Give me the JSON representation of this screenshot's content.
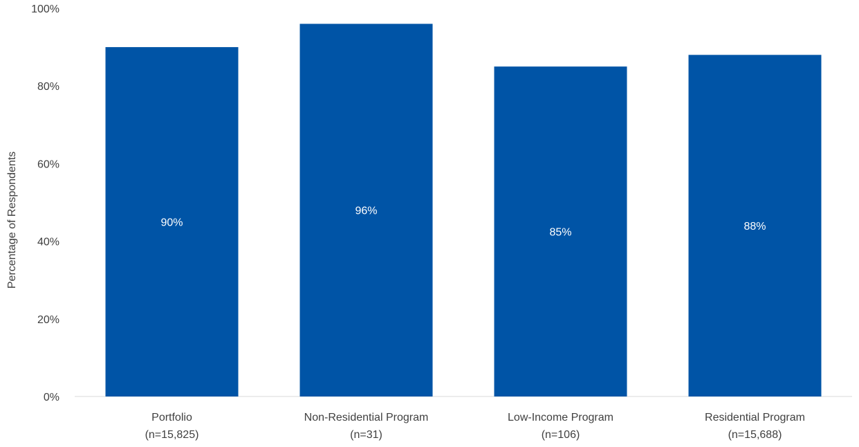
{
  "chart_data": {
    "type": "bar",
    "title": "",
    "xlabel": "",
    "ylabel": "Percentage of Respondents",
    "ylim": [
      0,
      100
    ],
    "yticks": [
      0,
      20,
      40,
      60,
      80,
      100
    ],
    "ytick_labels": [
      "0%",
      "20%",
      "40%",
      "60%",
      "80%",
      "100%"
    ],
    "grid": false,
    "legend": "none",
    "bar_color": "#0054A6",
    "categories": [
      {
        "name": "Portfolio",
        "n": "(n=15,825)"
      },
      {
        "name": "Non-Residential Program",
        "n": "(n=31)"
      },
      {
        "name": "Low-Income Program",
        "n": "(n=106)"
      },
      {
        "name": "Residential Program",
        "n": "(n=15,688)"
      }
    ],
    "values": [
      90,
      96,
      85,
      88
    ],
    "value_labels": [
      "90%",
      "96%",
      "85%",
      "88%"
    ]
  }
}
